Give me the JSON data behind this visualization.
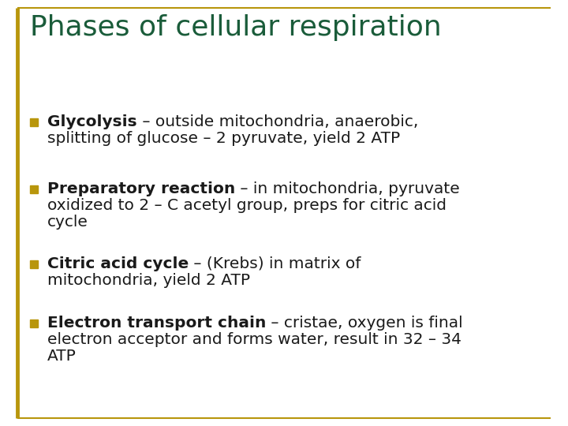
{
  "title": "Phases of cellular respiration",
  "title_color": "#1a5c3a",
  "title_fontsize": 26,
  "background_color": "#ffffff",
  "border_color": "#b8960c",
  "bullet_color": "#b8960c",
  "text_color": "#1a1a1a",
  "bullet_items": [
    {
      "bold_part": "Glycolysis",
      "line1_normal": " – outside mitochondria, anaerobic,",
      "extra_lines": [
        "splitting of glucose – 2 pyruvate, yield 2 ATP"
      ]
    },
    {
      "bold_part": "Preparatory reaction",
      "line1_normal": " – in mitochondria, pyruvate",
      "extra_lines": [
        "oxidized to 2 – C acetyl group, preps for citric acid",
        "cycle"
      ]
    },
    {
      "bold_part": "Citric acid cycle",
      "line1_normal": " – (Krebs) in matrix of",
      "extra_lines": [
        "mitochondria, yield 2 ATP"
      ]
    },
    {
      "bold_part": "Electron transport chain",
      "line1_normal": " – cristae, oxygen is final",
      "extra_lines": [
        "electron acceptor and forms water, result in 32 – 34",
        "ATP"
      ]
    }
  ],
  "bullet_fontsize": 14.5,
  "figsize": [
    7.2,
    5.4
  ],
  "dpi": 100
}
